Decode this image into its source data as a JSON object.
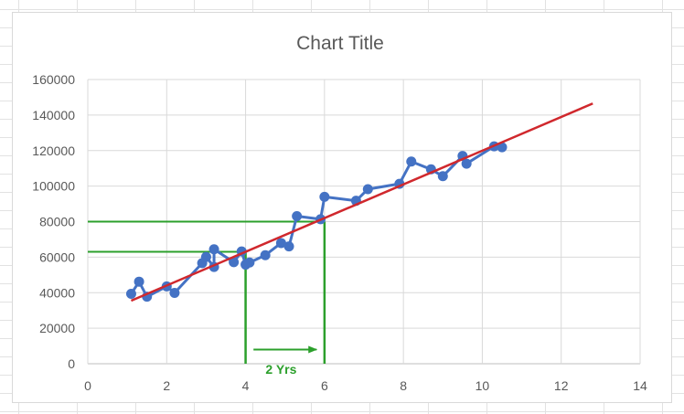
{
  "chart_data": {
    "type": "scatter",
    "title": "Chart Title",
    "xlim": [
      0,
      14
    ],
    "ylim": [
      0,
      160000
    ],
    "x_ticks": [
      "0",
      "2",
      "4",
      "6",
      "8",
      "10",
      "12",
      "14"
    ],
    "y_ticks": [
      "0",
      "20000",
      "40000",
      "60000",
      "80000",
      "100000",
      "120000",
      "140000",
      "160000"
    ],
    "grid": true,
    "legend": "none",
    "series": [
      {
        "color": "#4472c4",
        "marker": "circle",
        "connected": true,
        "points": [
          [
            1.1,
            39343
          ],
          [
            1.3,
            46205
          ],
          [
            1.5,
            37731
          ],
          [
            2.0,
            43525
          ],
          [
            2.2,
            39891
          ],
          [
            2.9,
            56642
          ],
          [
            3.0,
            60150
          ],
          [
            3.2,
            54445
          ],
          [
            3.2,
            64445
          ],
          [
            3.7,
            57189
          ],
          [
            3.9,
            63218
          ],
          [
            4.0,
            55794
          ],
          [
            4.1,
            56957
          ],
          [
            4.5,
            61111
          ],
          [
            4.9,
            67938
          ],
          [
            5.1,
            66029
          ],
          [
            5.3,
            83088
          ],
          [
            5.9,
            81363
          ],
          [
            6.0,
            93940
          ],
          [
            6.8,
            91738
          ],
          [
            7.1,
            98273
          ],
          [
            7.9,
            101302
          ],
          [
            8.2,
            113812
          ],
          [
            8.7,
            109431
          ],
          [
            9.0,
            105582
          ],
          [
            9.5,
            116969
          ],
          [
            9.6,
            112635
          ],
          [
            10.3,
            122391
          ],
          [
            10.5,
            121872
          ]
        ]
      },
      {
        "color": "#d0282d",
        "style": "trendline",
        "points": [
          [
            1.1,
            35500
          ],
          [
            12.8,
            146500
          ]
        ]
      }
    ],
    "annotations": {
      "color": "#2ca02c",
      "h_lines": [
        63000,
        80000
      ],
      "v_lines": [
        {
          "x": 4,
          "y_top": 63000
        },
        {
          "x": 6,
          "y_top": 80000
        }
      ],
      "arrow": {
        "x_from": 4.2,
        "x_to": 5.8,
        "y": 8000
      },
      "label": {
        "text": "2 Yrs",
        "x": 4.9,
        "y": -3000
      }
    }
  }
}
